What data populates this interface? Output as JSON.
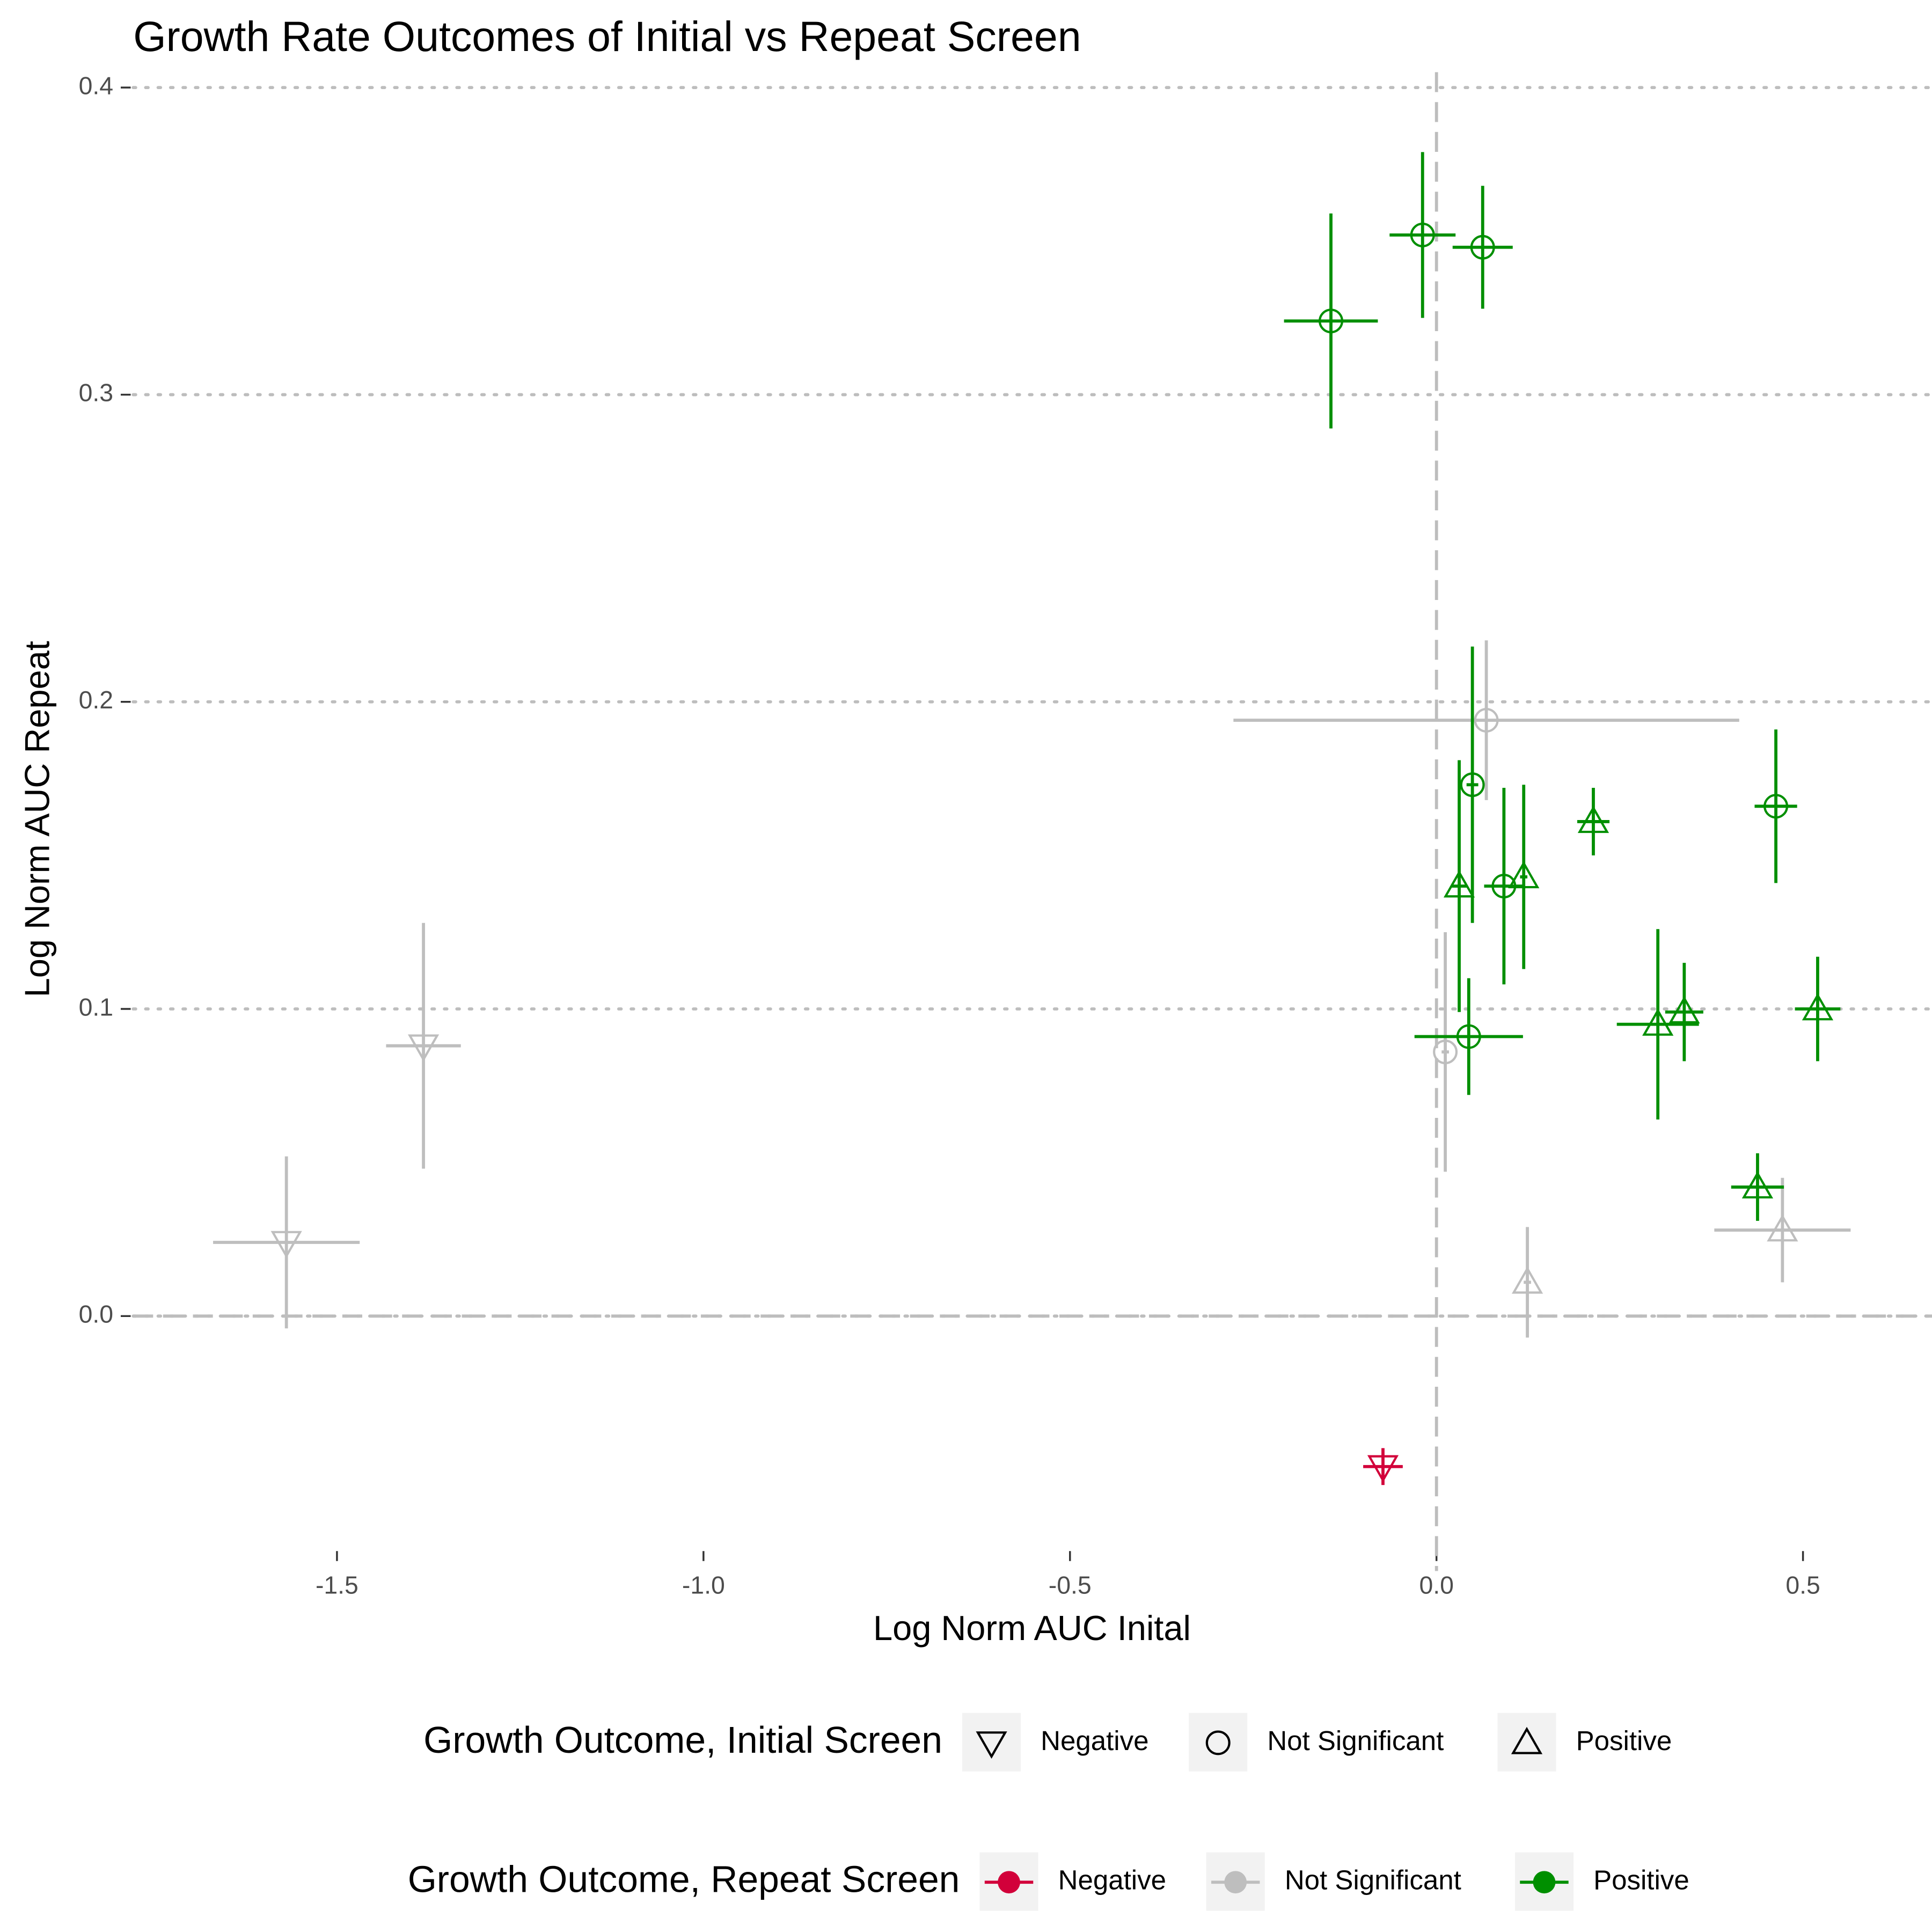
{
  "chart_data": {
    "type": "scatter",
    "title": "Growth Rate Outcomes of Initial vs Repeat Screen",
    "x_label": "Log Norm AUC Inital",
    "y_label": "Log Norm AUC Repeat",
    "xlim": [
      -1.778,
      0.676
    ],
    "ylim": [
      -0.083,
      0.405
    ],
    "xticks": [
      -1.5,
      {
        "value": -1.0,
        "label": "-1.0"
      },
      -0.5,
      {
        "value": 0.0,
        "label": "0.0"
      },
      0.5
    ],
    "yticks": [
      {
        "value": 0.0,
        "label": "0.0"
      },
      0.1,
      0.2,
      0.3,
      0.4
    ],
    "grid": "horizontal-dotted",
    "reference_lines": {
      "x": 0,
      "y": 0
    },
    "shape_legend": {
      "title": "Growth Outcome, Initial Screen",
      "entries": [
        {
          "name": "Negative",
          "shape": "triangle-down"
        },
        {
          "name": "Not Significant",
          "shape": "circle"
        },
        {
          "name": "Positive",
          "shape": "triangle-up"
        }
      ]
    },
    "color_legend_title": "Growth Outcome, Repeat Screen",
    "series": [
      {
        "name": "Negative",
        "color": "#d2003a",
        "x": [
          -0.073
        ],
        "y": [
          -0.049
        ],
        "xerr": [
          0.027
        ],
        "yerr": [
          0.006
        ],
        "initial": [
          "Negative"
        ]
      },
      {
        "name": "Not Significant",
        "color": "#bebebe",
        "x": [
          0.068,
          0.012,
          0.472,
          0.124,
          -1.382,
          -1.569
        ],
        "y": [
          0.194,
          0.086,
          0.028,
          0.011,
          0.088,
          0.024
        ],
        "xerr": [
          0.345,
          0.005,
          0.093,
          0.005,
          0.051,
          0.1
        ],
        "yerr": [
          0.026,
          0.039,
          0.017,
          0.018,
          0.04,
          0.028
        ],
        "initial": [
          "Not Significant",
          "Not Significant",
          "Positive",
          "Positive",
          "Negative",
          "Negative"
        ]
      },
      {
        "name": "Positive",
        "color": "#008f00",
        "x": [
          -0.144,
          -0.019,
          0.063,
          0.049,
          0.031,
          0.092,
          0.119,
          0.214,
          0.463,
          0.302,
          0.338,
          0.52,
          0.044,
          0.438
        ],
        "y": [
          0.324,
          0.352,
          0.348,
          0.173,
          0.14,
          0.14,
          0.143,
          0.161,
          0.166,
          0.095,
          0.099,
          0.1,
          0.091,
          0.042
        ],
        "xerr": [
          0.064,
          0.045,
          0.041,
          0.008,
          0.01,
          0.027,
          0.005,
          0.022,
          0.029,
          0.056,
          0.026,
          0.031,
          0.074,
          0.036
        ],
        "yerr": [
          0.035,
          0.027,
          0.02,
          0.045,
          0.041,
          0.032,
          0.03,
          0.011,
          0.025,
          0.031,
          0.016,
          0.017,
          0.019,
          0.011
        ],
        "initial": [
          "Not Significant",
          "Not Significant",
          "Not Significant",
          "Not Significant",
          "Positive",
          "Not Significant",
          "Positive",
          "Positive",
          "Not Significant",
          "Positive",
          "Positive",
          "Positive",
          "Not Significant",
          "Positive"
        ]
      }
    ]
  }
}
